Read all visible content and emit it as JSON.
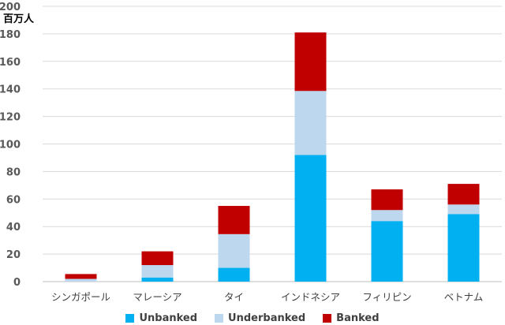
{
  "chart_data": {
    "type": "bar",
    "stacked": true,
    "unit_label": "百万人",
    "categories": [
      "シンガポール",
      "マレーシア",
      "タイ",
      "インドネシア",
      "フィリピン",
      "ベトナム"
    ],
    "series": [
      {
        "name": "Unbanked",
        "color": "#00b0f0",
        "values": [
          0,
          3,
          10,
          92,
          44,
          49
        ]
      },
      {
        "name": "Underbanked",
        "color": "#bdd7ee",
        "values": [
          2,
          9,
          24.5,
          46.5,
          8,
          7
        ]
      },
      {
        "name": "Banked",
        "color": "#c00000",
        "values": [
          3.5,
          10,
          20.5,
          42.5,
          15,
          15
        ]
      }
    ],
    "ylim": [
      0,
      200
    ],
    "yticks": [
      0,
      20,
      40,
      60,
      80,
      100,
      120,
      140,
      160,
      180,
      200
    ],
    "grid": true,
    "legend_position": "bottom"
  }
}
